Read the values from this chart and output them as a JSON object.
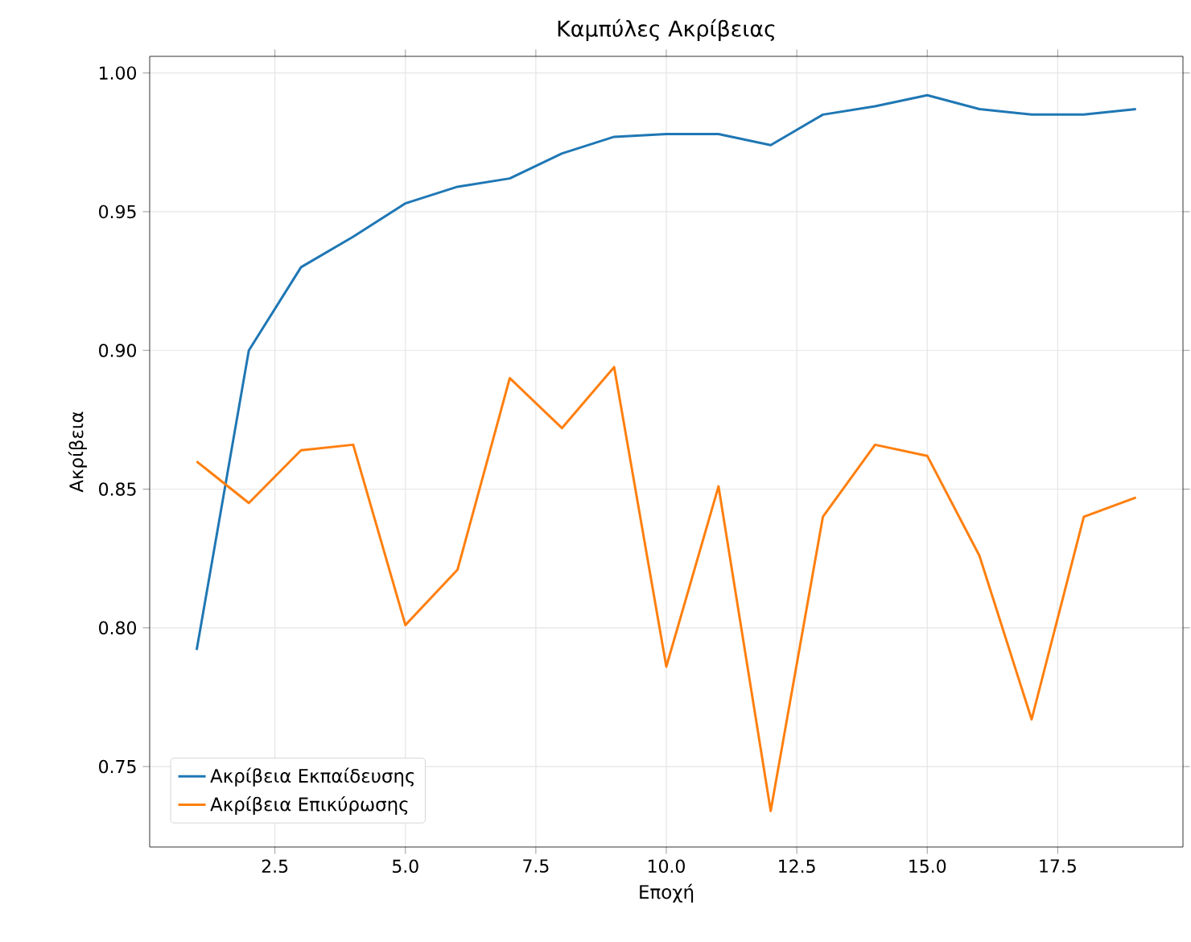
{
  "chart_data": {
    "type": "line",
    "title": "Καμπύλες Ακρίβειας",
    "xlabel": "Εποχή",
    "ylabel": "Ακρίβεια",
    "x": [
      1,
      2,
      3,
      4,
      5,
      6,
      7,
      8,
      9,
      10,
      11,
      12,
      13,
      14,
      15,
      16,
      17,
      18,
      19
    ],
    "series": [
      {
        "name": "Ακρίβεια Εκπαίδευσης",
        "color": "#1f77b4",
        "values": [
          0.792,
          0.9,
          0.93,
          0.941,
          0.953,
          0.959,
          0.962,
          0.971,
          0.977,
          0.978,
          0.978,
          0.974,
          0.985,
          0.988,
          0.992,
          0.987,
          0.985,
          0.985,
          0.987
        ]
      },
      {
        "name": "Ακρίβεια Επικύρωσης",
        "color": "#ff7f0e",
        "values": [
          0.86,
          0.845,
          0.864,
          0.866,
          0.801,
          0.821,
          0.89,
          0.872,
          0.894,
          0.786,
          0.851,
          0.734,
          0.84,
          0.866,
          0.862,
          0.826,
          0.767,
          0.84,
          0.847
        ]
      }
    ],
    "xlim": [
      0.1,
      19.9
    ],
    "ylim": [
      0.721,
      1.006
    ],
    "xticks": [
      {
        "value": 2.5,
        "label": "2.5"
      },
      {
        "value": 5,
        "label": "5.0"
      },
      {
        "value": 7.5,
        "label": "7.5"
      },
      {
        "value": 10,
        "label": "10.0"
      },
      {
        "value": 12.5,
        "label": "12.5"
      },
      {
        "value": 15,
        "label": "15.0"
      },
      {
        "value": 17.5,
        "label": "17.5"
      }
    ],
    "yticks": [
      {
        "value": 0.75,
        "label": "0.75"
      },
      {
        "value": 0.8,
        "label": "0.80"
      },
      {
        "value": 0.85,
        "label": "0.85"
      },
      {
        "value": 0.9,
        "label": "0.90"
      },
      {
        "value": 0.95,
        "label": "0.95"
      },
      {
        "value": 1.0,
        "label": "1.00"
      }
    ],
    "grid": true,
    "legend": "bottom left",
    "marker": "none",
    "line_style": "solid"
  }
}
